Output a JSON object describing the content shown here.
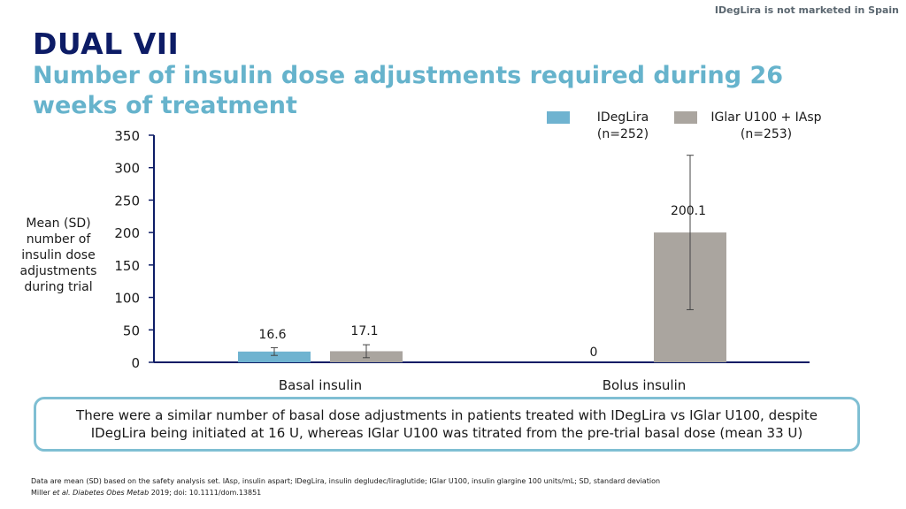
{
  "disclaimer": "IDegLira is not marketed in Spain",
  "title": "DUAL VII",
  "subtitle": "Number of insulin dose adjustments required during 26 weeks of treatment",
  "ylabel": "Mean (SD) number of insulin dose adjustments during trial",
  "legend": [
    {
      "line1": "IDegLira",
      "line2": "(n=252)",
      "color": "#6fb3d0"
    },
    {
      "line1": "IGlar U100 + IAsp",
      "line2": "(n=253)",
      "color": "#aaa59f"
    }
  ],
  "callout": "There were a similar number of basal dose adjustments in patients treated with IDegLira vs IGlar U100, despite IDegLira being initiated at 16 U, whereas IGlar U100 was titrated from the pre-trial basal dose (mean 33 U)",
  "footnote": "Data are mean (SD) based on the safety analysis set. IAsp, insulin aspart; IDegLira, insulin degludec/liraglutide; IGlar U100, insulin glargine 100 units/mL; SD, standard deviation",
  "reference": {
    "authors": "Miller",
    "etal": "et al. Diabetes Obes Metab",
    "rest": "2019; doi: 10.1111/dom.13851"
  },
  "chart_data": {
    "type": "bar",
    "categories": [
      "Basal insulin",
      "Bolus insulin"
    ],
    "series": [
      {
        "name": "IDegLira (n=252)",
        "color": "#6fb3d0",
        "values": [
          16.6,
          0
        ],
        "sd": [
          6,
          null
        ],
        "labels": [
          "16.6",
          "0"
        ]
      },
      {
        "name": "IGlar U100 + IAsp (n=253)",
        "color": "#aaa59f",
        "values": [
          17.1,
          200.1
        ],
        "sd": [
          10,
          119
        ],
        "labels": [
          "17.1",
          "200.1"
        ]
      }
    ],
    "yticks": [
      0,
      50,
      100,
      150,
      200,
      250,
      300,
      350
    ],
    "ylim": [
      0,
      350
    ],
    "ylabel": "Mean (SD) number of insulin dose adjustments during trial",
    "legend_position": "top-right",
    "grid": false
  }
}
